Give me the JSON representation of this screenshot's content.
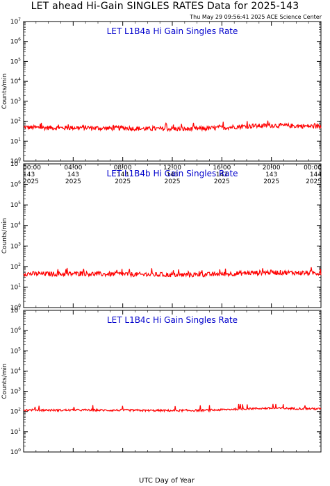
{
  "header": {
    "title": "LET ahead Hi-Gain SINGLES RATES Data for 2025-143",
    "timestamp": "Thu May 29 09:56:41 2025 ACE Science Center"
  },
  "xaxis_label": "UTC Day of Year",
  "colors": {
    "line": "#ff0000",
    "panel_title": "#0000cc",
    "axis": "#000000"
  },
  "chart_data": [
    {
      "type": "line",
      "title": "LET L1B4a Hi Gain Singles Rate",
      "ylabel": "Counts/min",
      "yscale": "log",
      "ylim": [
        1,
        10000000
      ],
      "xlim_hours": [
        0,
        24
      ],
      "x_ticks": [
        {
          "time": "00:00",
          "doy": "143",
          "year": "2025"
        },
        {
          "time": "04:00",
          "doy": "143",
          "year": "2025"
        },
        {
          "time": "08:00",
          "doy": "143",
          "year": "2025"
        },
        {
          "time": "12:00",
          "doy": "143",
          "year": "2025"
        },
        {
          "time": "16:00",
          "doy": "143",
          "year": "2025"
        },
        {
          "time": "20:00",
          "doy": "143",
          "year": "2025"
        },
        {
          "time": "00:00",
          "doy": "144",
          "year": "2025"
        }
      ],
      "series": [
        {
          "hours": [
            0,
            1,
            2,
            3,
            4,
            5,
            6,
            7,
            8,
            9,
            10,
            11,
            12,
            13,
            14,
            15,
            16,
            17,
            18,
            19,
            20,
            21,
            22,
            23,
            24
          ],
          "values": [
            50,
            48,
            47,
            46,
            47,
            48,
            45,
            44,
            46,
            43,
            41,
            42,
            41,
            40,
            42,
            44,
            47,
            52,
            56,
            58,
            62,
            60,
            58,
            56,
            55
          ],
          "noise_factor": 1.3
        }
      ]
    },
    {
      "type": "line",
      "title": "LET L1B4b Hi Gain Singles Rate",
      "ylabel": "Counts/min",
      "yscale": "log",
      "ylim": [
        1,
        10000000
      ],
      "xlim_hours": [
        0,
        24
      ],
      "x_ticks": [],
      "series": [
        {
          "hours": [
            0,
            1,
            2,
            3,
            4,
            5,
            6,
            7,
            8,
            9,
            10,
            11,
            12,
            13,
            14,
            15,
            16,
            17,
            18,
            19,
            20,
            21,
            22,
            23,
            24
          ],
          "values": [
            45,
            44,
            44,
            43,
            44,
            45,
            43,
            42,
            43,
            41,
            40,
            40,
            39,
            39,
            40,
            41,
            43,
            45,
            48,
            50,
            52,
            51,
            50,
            49,
            48
          ],
          "noise_factor": 1.3
        }
      ]
    },
    {
      "type": "line",
      "title": "LET L1B4c Hi Gain Singles Rate",
      "ylabel": "Counts/min",
      "yscale": "log",
      "ylim": [
        1,
        10000000
      ],
      "xlim_hours": [
        0,
        24
      ],
      "x_ticks": [],
      "series": [
        {
          "hours": [
            0,
            1,
            2,
            3,
            4,
            5,
            6,
            7,
            8,
            9,
            10,
            11,
            12,
            13,
            14,
            15,
            16,
            17,
            18,
            19,
            20,
            21,
            22,
            23,
            24
          ],
          "values": [
            120,
            118,
            117,
            116,
            117,
            118,
            116,
            115,
            116,
            114,
            112,
            112,
            111,
            112,
            113,
            116,
            122,
            130,
            138,
            142,
            145,
            143,
            140,
            138,
            135
          ],
          "noise_factor": 1.12
        }
      ]
    }
  ]
}
